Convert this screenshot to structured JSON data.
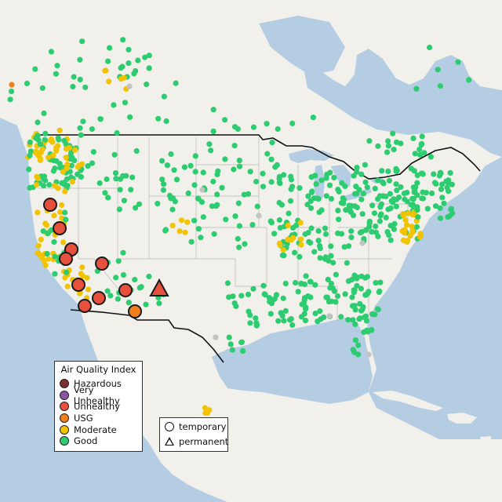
{
  "legend_aqi": {
    "title": "Air Quality Index",
    "items": [
      {
        "label": "Hazardous",
        "color": "#7b2d2d"
      },
      {
        "label": "Very Unhealthy",
        "color": "#8e55a5"
      },
      {
        "label": "Unhealthy",
        "color": "#e8503e"
      },
      {
        "label": "USG",
        "color": "#f07f1e"
      },
      {
        "label": "Moderate",
        "color": "#f2c300"
      },
      {
        "label": "Good",
        "color": "#2ecc71"
      }
    ]
  },
  "legend_type": {
    "items": [
      {
        "label": "temporary",
        "icon": "circle-icon"
      },
      {
        "label": "permanent",
        "icon": "triangle-icon"
      }
    ]
  },
  "colors": {
    "water": "#b4cde3",
    "land": "#f2f0eb",
    "us_land": "#ebe9e4",
    "unknown_station": "#c2c2c2"
  },
  "map_data": {
    "large_markers": [
      {
        "aqi": "Unhealthy",
        "type": "temporary"
      },
      {
        "aqi": "Unhealthy",
        "type": "temporary"
      },
      {
        "aqi": "Unhealthy",
        "type": "temporary"
      },
      {
        "aqi": "Unhealthy",
        "type": "temporary"
      },
      {
        "aqi": "Unhealthy",
        "type": "temporary"
      },
      {
        "aqi": "Unhealthy",
        "type": "temporary"
      },
      {
        "aqi": "Unhealthy",
        "type": "temporary"
      },
      {
        "aqi": "Unhealthy",
        "type": "temporary"
      },
      {
        "aqi": "Unhealthy",
        "type": "temporary"
      },
      {
        "aqi": "USG",
        "type": "temporary"
      },
      {
        "aqi": "Unhealthy",
        "type": "permanent"
      }
    ]
  }
}
